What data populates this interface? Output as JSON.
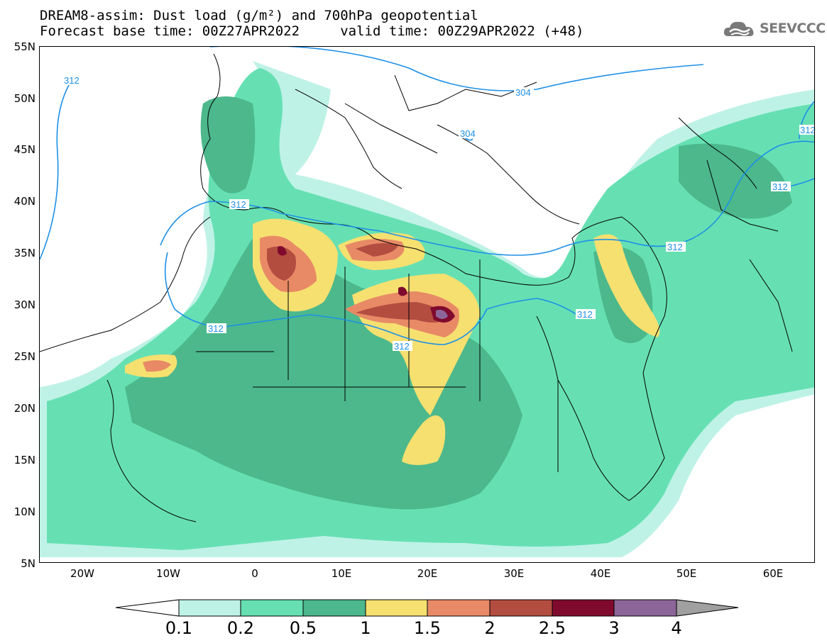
{
  "title": {
    "line1": "DREAM8-assim: Dust load (g/m²) and 700hPa geopotential",
    "line2": "Forecast base time: 00Z27APR2022     valid time: 00Z29APR2022 (+48)"
  },
  "logo": {
    "text": "SEEVCCC",
    "icon": "cloud-icon"
  },
  "map": {
    "lat_labels": [
      "55N",
      "50N",
      "45N",
      "40N",
      "35N",
      "30N",
      "25N",
      "20N",
      "15N",
      "10N",
      "5N"
    ],
    "lon_labels": [
      "20W",
      "10W",
      "0",
      "10E",
      "20E",
      "30E",
      "40E",
      "50E",
      "60E"
    ],
    "contour_labels": [
      "312",
      "304",
      "304",
      "312",
      "312",
      "312",
      "312",
      "312",
      "312",
      "312"
    ],
    "colors": {
      "coast": "#000000",
      "contour": "#1e90e6",
      "band_01": "#bff2e6",
      "band_02": "#66e0b3",
      "band_05": "#4cb88c",
      "band_1": "#f5e070",
      "band_15": "#e88a66",
      "band_2": "#b34d40",
      "band_25": "#800a2e",
      "band_3": "#8c6699"
    }
  },
  "colorbar": {
    "labels": [
      "0.1",
      "0.2",
      "0.5",
      "1",
      "1.5",
      "2",
      "2.5",
      "3",
      "4"
    ],
    "colors": [
      "#bff2e6",
      "#66e0b3",
      "#4cb88c",
      "#f5e070",
      "#e88a66",
      "#b34d40",
      "#800a2e",
      "#8c6699"
    ],
    "under_color": "#ffffff",
    "over_color": "#a0a0a0"
  }
}
